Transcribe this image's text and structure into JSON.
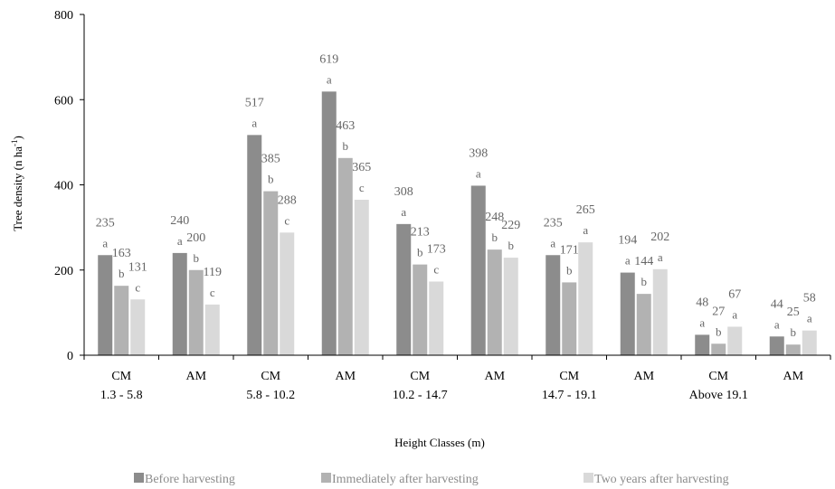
{
  "chart_data": {
    "type": "bar",
    "ylabel": "Tree density (n ha",
    "ylabel_sup": "-1",
    "ylabel_close": ")",
    "xlabel": "Height Classes (m)",
    "ylim": [
      0,
      800
    ],
    "yticks": [
      "0",
      "200",
      "400",
      "600",
      "800"
    ],
    "grid": false,
    "legend_position": "bottom",
    "categories": [
      {
        "line1": "CM",
        "line2": "1.3 - 5.8"
      },
      {
        "line1": "AM",
        "line2": ""
      },
      {
        "line1": "CM",
        "line2": "5.8 - 10.2"
      },
      {
        "line1": "AM",
        "line2": ""
      },
      {
        "line1": "CM",
        "line2": "10.2 - 14.7"
      },
      {
        "line1": "AM",
        "line2": ""
      },
      {
        "line1": "CM",
        "line2": "14.7 - 19.1"
      },
      {
        "line1": "AM",
        "line2": ""
      },
      {
        "line1": "CM",
        "line2": "Above 19.1"
      },
      {
        "line1": "AM",
        "line2": ""
      }
    ],
    "series": [
      {
        "name": "Before harvesting",
        "color": "#8c8c8c",
        "values": [
          235,
          240,
          517,
          619,
          308,
          398,
          235,
          194,
          48,
          44
        ],
        "letters": [
          "a",
          "a",
          "a",
          "a",
          "a",
          "a",
          "a",
          "a",
          "a",
          "a"
        ]
      },
      {
        "name": "Immediately after harvesting",
        "color": "#b2b2b2",
        "values": [
          163,
          200,
          385,
          463,
          213,
          248,
          171,
          144,
          27,
          25
        ],
        "letters": [
          "b",
          "b",
          "b",
          "b",
          "b",
          "b",
          "b",
          "b",
          "b",
          "b"
        ]
      },
      {
        "name": "Two years after harvesting",
        "color": "#d9d9d9",
        "values": [
          131,
          119,
          288,
          365,
          173,
          229,
          265,
          202,
          67,
          58
        ],
        "letters": [
          "c",
          "c",
          "c",
          "c",
          "c",
          "b",
          "a",
          "a",
          "a",
          "a"
        ]
      }
    ]
  }
}
